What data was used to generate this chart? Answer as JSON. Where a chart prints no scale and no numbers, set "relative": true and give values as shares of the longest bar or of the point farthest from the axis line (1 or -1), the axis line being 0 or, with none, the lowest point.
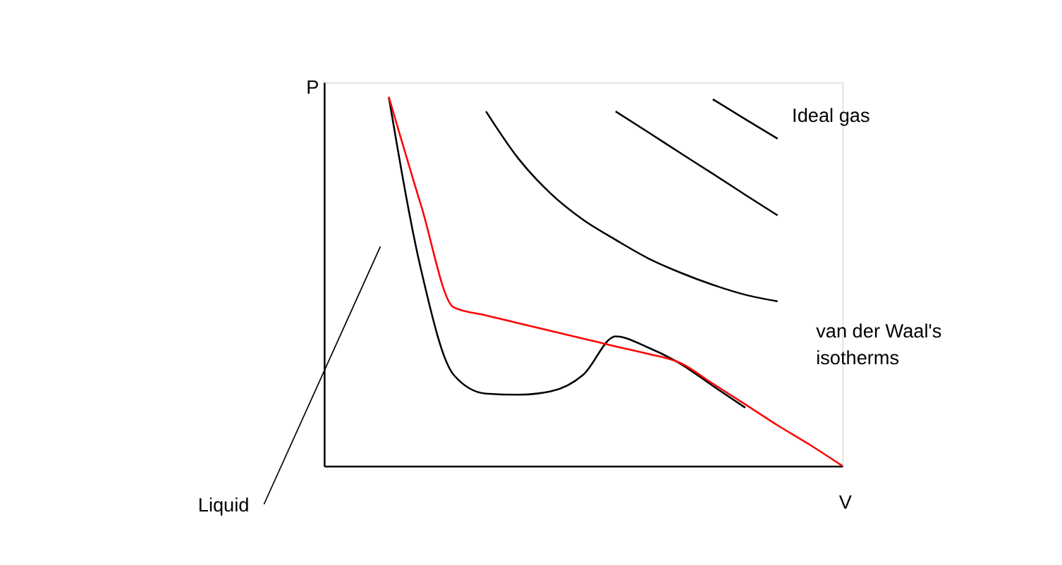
{
  "chart_data": {
    "type": "line",
    "relative": true,
    "xlabel": "V",
    "ylabel": "P",
    "grid": false,
    "marker": "none",
    "line_style": "solid",
    "categories": [
      null,
      null,
      null,
      null,
      null,
      null,
      null,
      null,
      null,
      null,
      null,
      null,
      null,
      null,
      null,
      null,
      null
    ],
    "series": [
      {
        "color": "#000000",
        "values": [
          null,
          null,
          1.0,
          0.53,
          0.247,
          0.196,
          0.193,
          0.202,
          0.247,
          0.351,
          0.321,
          0.277,
          0.217,
          0.158,
          null,
          null,
          null
        ]
      },
      {
        "color": "#000000",
        "values": [
          null,
          null,
          null,
          null,
          null,
          0.961,
          0.833,
          0.738,
          0.667,
          0.613,
          0.563,
          0.524,
          0.491,
          0.464,
          0.446,
          null,
          null
        ]
      },
      {
        "color": "#000000",
        "values": [
          null,
          null,
          null,
          null,
          null,
          null,
          null,
          null,
          null,
          0.961,
          0.905,
          0.848,
          0.792,
          0.735,
          0.679,
          null,
          null
        ]
      },
      {
        "color": "#000000",
        "values": [
          null,
          null,
          null,
          null,
          null,
          null,
          null,
          null,
          null,
          null,
          null,
          null,
          0.994,
          0.94,
          0.887,
          null,
          null
        ]
      },
      {
        "color": "#ff0000",
        "values": [
          null,
          null,
          1.0,
          0.705,
          0.43,
          0.408,
          0.387,
          0.366,
          0.345,
          0.324,
          0.304,
          0.279,
          0.223,
          0.167,
          0.11,
          0.057,
          0.0
        ]
      }
    ],
    "annotations": [
      "Ideal gas",
      "van der Waal's\nisotherms",
      "Liquid"
    ]
  }
}
